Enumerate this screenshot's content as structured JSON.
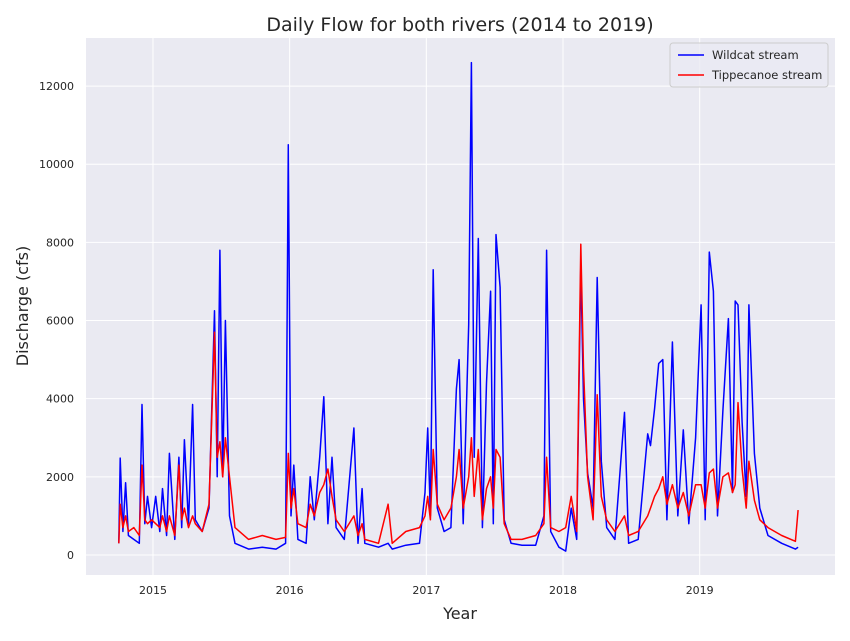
{
  "chart_data": {
    "type": "line",
    "title": "Daily Flow for both rivers (2014 to 2019)",
    "x_label": "Year",
    "y_label": "Discharge (cfs)",
    "x": [
      2014.75,
      2014.76,
      2014.78,
      2014.8,
      2014.82,
      2014.86,
      2014.9,
      2014.92,
      2014.94,
      2014.96,
      2014.99,
      2015.02,
      2015.05,
      2015.07,
      2015.1,
      2015.12,
      2015.16,
      2015.19,
      2015.21,
      2015.23,
      2015.26,
      2015.29,
      2015.31,
      2015.36,
      2015.41,
      2015.45,
      2015.47,
      2015.49,
      2015.51,
      2015.53,
      2015.56,
      2015.6,
      2015.7,
      2015.8,
      2015.9,
      2015.97,
      2015.99,
      2016.01,
      2016.03,
      2016.06,
      2016.12,
      2016.15,
      2016.18,
      2016.22,
      2016.25,
      2016.28,
      2016.31,
      2016.34,
      2016.4,
      2016.47,
      2016.5,
      2016.53,
      2016.55,
      2016.65,
      2016.72,
      2016.75,
      2016.85,
      2016.95,
      2016.99,
      2017.01,
      2017.03,
      2017.05,
      2017.08,
      2017.13,
      2017.18,
      2017.22,
      2017.24,
      2017.27,
      2017.31,
      2017.33,
      2017.35,
      2017.38,
      2017.41,
      2017.44,
      2017.47,
      2017.49,
      2017.51,
      2017.54,
      2017.57,
      2017.62,
      2017.7,
      2017.8,
      2017.86,
      2017.88,
      2017.91,
      2017.97,
      2018.02,
      2018.06,
      2018.1,
      2018.13,
      2018.15,
      2018.18,
      2018.22,
      2018.25,
      2018.28,
      2018.32,
      2018.38,
      2018.45,
      2018.48,
      2018.55,
      2018.62,
      2018.64,
      2018.67,
      2018.7,
      2018.73,
      2018.76,
      2018.8,
      2018.84,
      2018.88,
      2018.92,
      2018.97,
      2019.01,
      2019.04,
      2019.07,
      2019.1,
      2019.13,
      2019.17,
      2019.21,
      2019.24,
      2019.26,
      2019.28,
      2019.31,
      2019.34,
      2019.36,
      2019.4,
      2019.44,
      2019.5,
      2019.6,
      2019.7,
      2019.72
    ],
    "series": [
      {
        "name": "Wildcat stream",
        "color": "#0000ff",
        "values": [
          300,
          2480,
          600,
          1850,
          500,
          400,
          300,
          3850,
          800,
          1500,
          700,
          1500,
          600,
          1700,
          500,
          2600,
          400,
          2500,
          700,
          2950,
          800,
          3850,
          900,
          600,
          1200,
          6250,
          2000,
          7800,
          2000,
          6000,
          1000,
          300,
          150,
          200,
          150,
          300,
          10500,
          1000,
          2300,
          400,
          300,
          2000,
          900,
          2500,
          4050,
          800,
          2500,
          700,
          400,
          3250,
          300,
          1700,
          300,
          200,
          300,
          150,
          250,
          300,
          1600,
          3250,
          1000,
          7300,
          1200,
          600,
          700,
          4250,
          5000,
          800,
          5900,
          12600,
          2500,
          8100,
          700,
          4400,
          6750,
          800,
          8200,
          6850,
          900,
          300,
          250,
          250,
          1000,
          7800,
          600,
          200,
          100,
          1200,
          400,
          7400,
          4000,
          2100,
          1200,
          7100,
          2400,
          700,
          400,
          3650,
          300,
          400,
          3100,
          2800,
          3750,
          4900,
          5000,
          900,
          5450,
          1000,
          3200,
          800,
          3000,
          6400,
          900,
          7750,
          6750,
          1000,
          3700,
          6050,
          1600,
          6500,
          6400,
          3400,
          1500,
          6400,
          2600,
          1200,
          500,
          300,
          150,
          200
        ]
      },
      {
        "name": "Tippecanoe stream",
        "color": "#ff0000",
        "values": [
          300,
          1300,
          700,
          1000,
          600,
          700,
          500,
          2300,
          900,
          800,
          900,
          800,
          700,
          1000,
          600,
          1000,
          500,
          2300,
          900,
          1200,
          700,
          1000,
          800,
          600,
          1300,
          5700,
          2500,
          2900,
          2000,
          3000,
          2000,
          700,
          400,
          500,
          400,
          450,
          2600,
          1200,
          1700,
          800,
          700,
          1300,
          1000,
          1600,
          1800,
          2200,
          1500,
          900,
          600,
          1000,
          500,
          800,
          400,
          300,
          1300,
          300,
          600,
          700,
          1000,
          1500,
          900,
          2700,
          1300,
          900,
          1200,
          2000,
          2700,
          1200,
          2000,
          3000,
          1500,
          2700,
          900,
          1700,
          2000,
          1200,
          2700,
          2500,
          800,
          400,
          400,
          500,
          800,
          2500,
          700,
          600,
          700,
          1500,
          600,
          7950,
          4800,
          2000,
          900,
          4100,
          1500,
          900,
          600,
          1000,
          500,
          600,
          1000,
          1200,
          1500,
          1700,
          2000,
          1300,
          1800,
          1200,
          1600,
          1000,
          1800,
          1800,
          1200,
          2100,
          2200,
          1200,
          2000,
          2100,
          1600,
          1800,
          3900,
          2200,
          1200,
          2400,
          1400,
          900,
          700,
          500,
          350,
          1150
        ]
      }
    ],
    "xlim": [
      2014.51,
      2019.99
    ],
    "xticks": [
      2015,
      2016,
      2017,
      2018,
      2019
    ],
    "ylim": [
      -512,
      13230
    ],
    "yticks": [
      0,
      2000,
      4000,
      6000,
      8000,
      10000,
      12000
    ],
    "grid": true,
    "legend": "upper right"
  }
}
